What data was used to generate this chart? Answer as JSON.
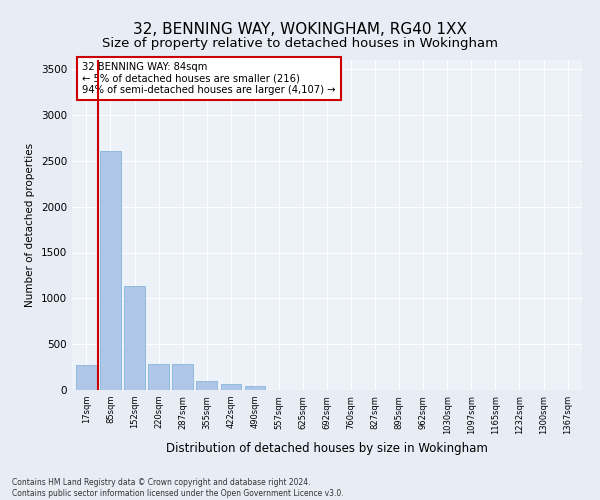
{
  "title": "32, BENNING WAY, WOKINGHAM, RG40 1XX",
  "subtitle": "Size of property relative to detached houses in Wokingham",
  "xlabel": "Distribution of detached houses by size in Wokingham",
  "ylabel": "Number of detached properties",
  "categories": [
    "17sqm",
    "85sqm",
    "152sqm",
    "220sqm",
    "287sqm",
    "355sqm",
    "422sqm",
    "490sqm",
    "557sqm",
    "625sqm",
    "692sqm",
    "760sqm",
    "827sqm",
    "895sqm",
    "962sqm",
    "1030sqm",
    "1097sqm",
    "1165sqm",
    "1232sqm",
    "1300sqm",
    "1367sqm"
  ],
  "values": [
    270,
    2610,
    1130,
    285,
    280,
    100,
    65,
    45,
    0,
    0,
    0,
    0,
    0,
    0,
    0,
    0,
    0,
    0,
    0,
    0,
    0
  ],
  "bar_color": "#aec6e8",
  "bar_edge_color": "#7aaed4",
  "highlight_color": "#cc0000",
  "annotation_title": "32 BENNING WAY: 84sqm",
  "annotation_line1": "← 5% of detached houses are smaller (216)",
  "annotation_line2": "94% of semi-detached houses are larger (4,107) →",
  "annotation_box_color": "#cc0000",
  "ylim": [
    0,
    3600
  ],
  "yticks": [
    0,
    500,
    1000,
    1500,
    2000,
    2500,
    3000,
    3500
  ],
  "footer_line1": "Contains HM Land Registry data © Crown copyright and database right 2024.",
  "footer_line2": "Contains public sector information licensed under the Open Government Licence v3.0.",
  "bg_color": "#e8edf5",
  "plot_bg_color": "#edf1f8",
  "title_fontsize": 11,
  "subtitle_fontsize": 9.5
}
